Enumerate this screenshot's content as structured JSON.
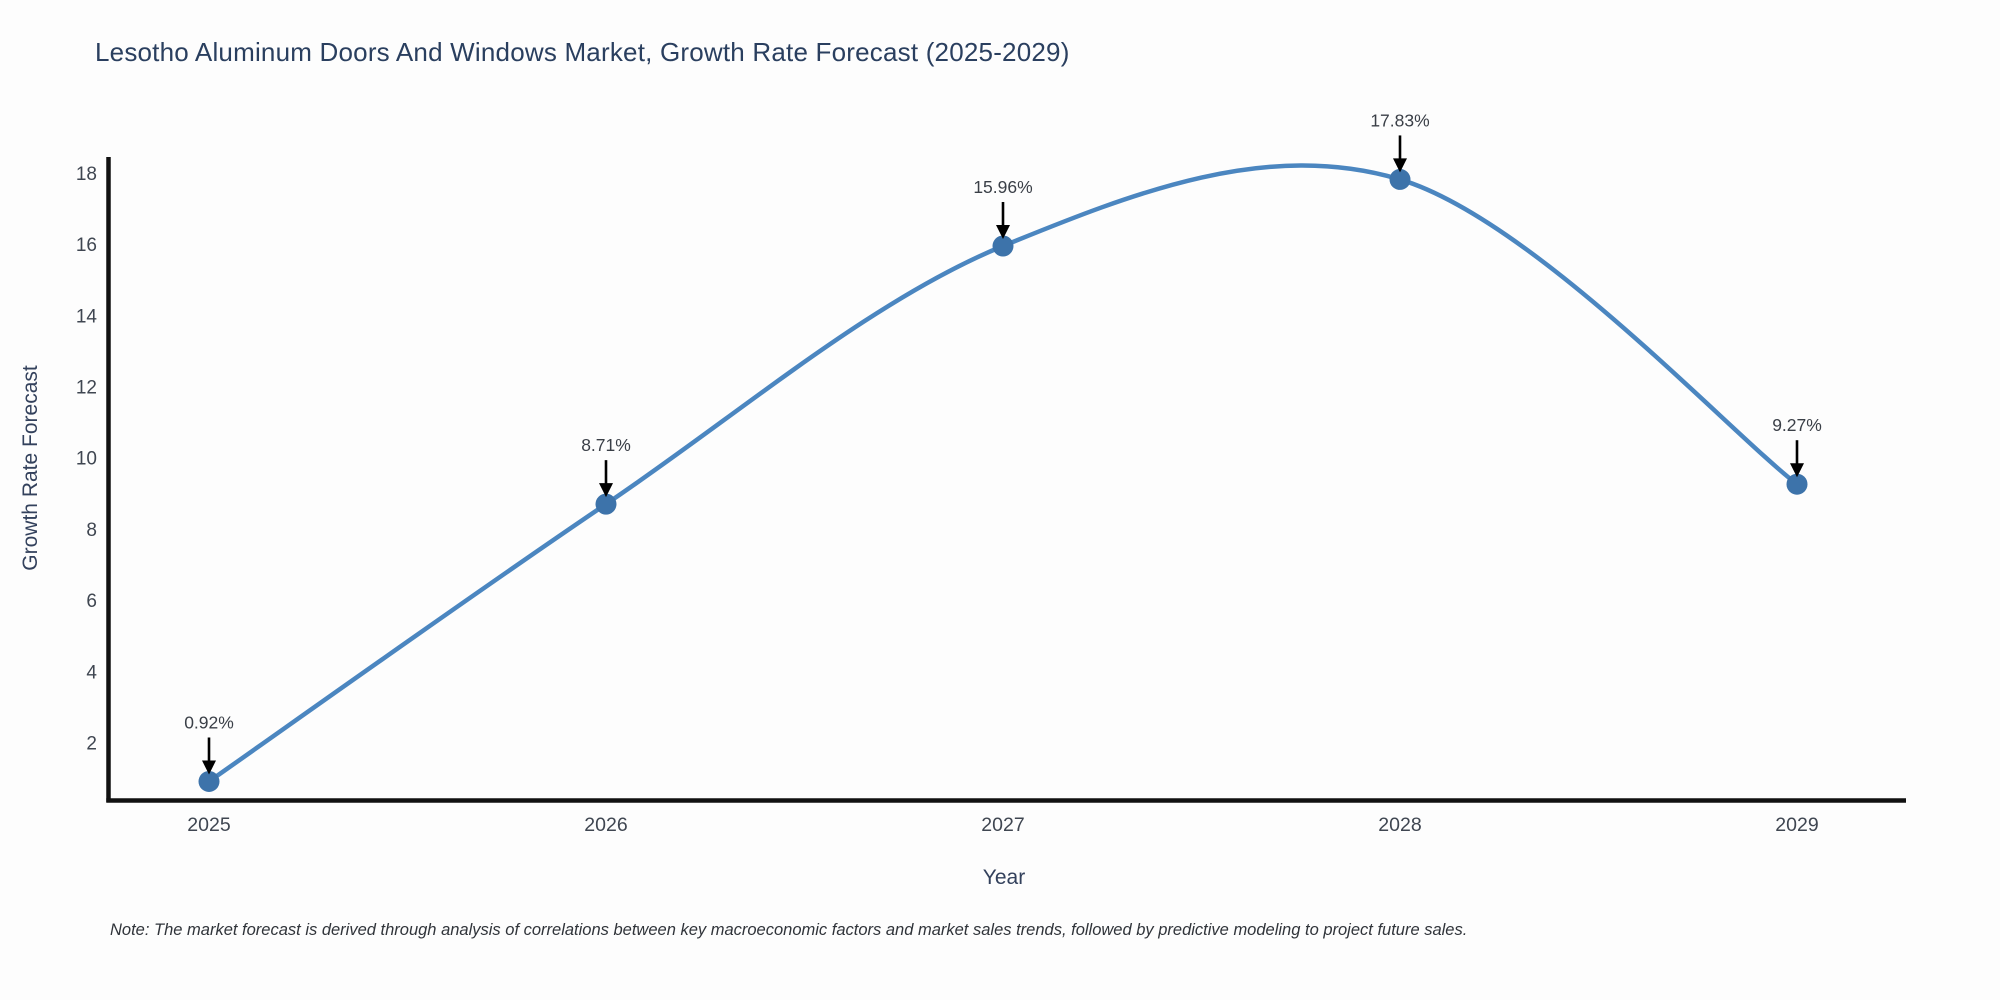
{
  "title": "Lesotho Aluminum Doors And Windows Market, Growth Rate Forecast (2025-2029)",
  "note": "Note: The market forecast is derived through analysis of correlations between key macroeconomic factors and market sales trends, followed by predictive modeling to project future sales.",
  "chart_data": {
    "type": "line",
    "line_shape": "spline",
    "title": "Lesotho Aluminum Doors And Windows Market, Growth Rate Forecast (2025-2029)",
    "xlabel": "Year",
    "ylabel": "Growth Rate Forecast",
    "categories": [
      "2025",
      "2026",
      "2027",
      "2028",
      "2029"
    ],
    "series": [
      {
        "name": "Growth Rate Forecast",
        "values": [
          0.92,
          8.71,
          15.96,
          17.83,
          9.27
        ]
      }
    ],
    "point_labels": [
      "0.92%",
      "8.71%",
      "15.96%",
      "17.83%",
      "9.27%"
    ],
    "y_ticks": [
      2,
      4,
      6,
      8,
      10,
      12,
      14,
      16,
      18
    ],
    "ylim": [
      0.4,
      18.46
    ],
    "grid": false,
    "legend": false,
    "markers": true,
    "annotation_arrows": true,
    "colors": {
      "line": "#4b86c0",
      "marker": "#3d73aa",
      "axis": "#111111",
      "arrow": "#000000",
      "title_text": "#2a3f5f",
      "axis_title_text": "#33415c",
      "tick_text": "#3f4651",
      "annotation_text": "#3a3f47",
      "note_text": "#30343a",
      "background": "#fdfdfd"
    }
  }
}
